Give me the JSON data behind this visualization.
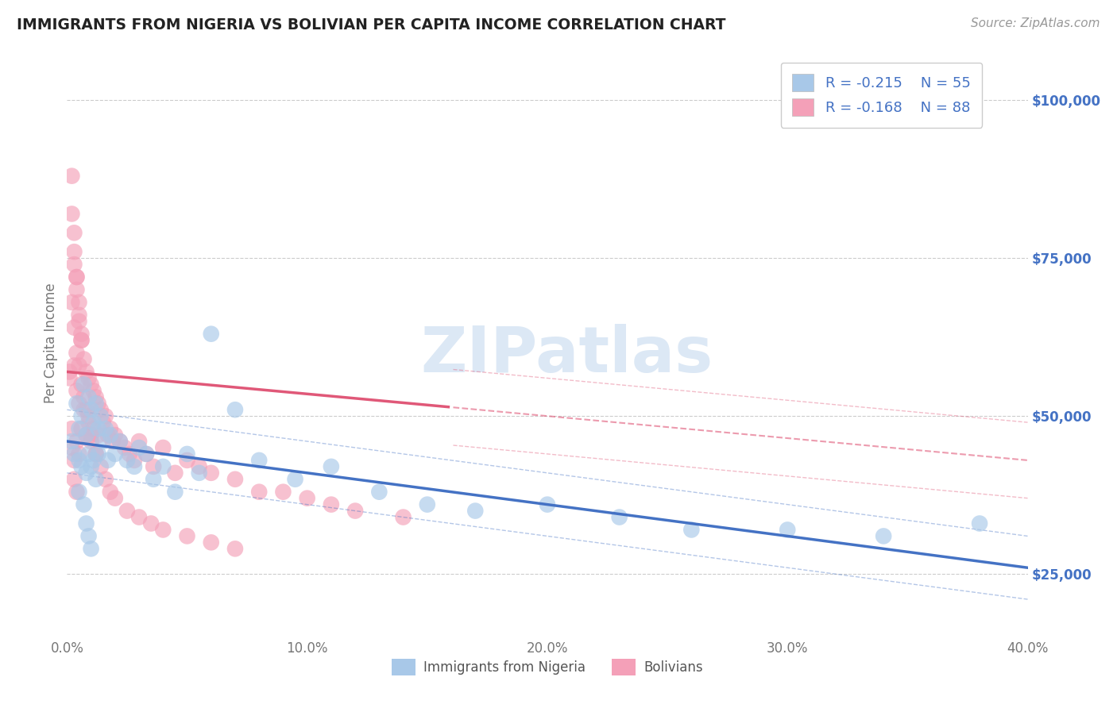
{
  "title": "IMMIGRANTS FROM NIGERIA VS BOLIVIAN PER CAPITA INCOME CORRELATION CHART",
  "source": "Source: ZipAtlas.com",
  "xlabel_nigeria": "Immigrants from Nigeria",
  "xlabel_bolivians": "Bolivians",
  "ylabel": "Per Capita Income",
  "legend_R1": "R = -0.215",
  "legend_N1": "N = 55",
  "legend_R2": "R = -0.168",
  "legend_N2": "N = 88",
  "xlim": [
    0.0,
    0.4
  ],
  "ylim": [
    15000,
    108000
  ],
  "yticks": [
    25000,
    50000,
    75000,
    100000
  ],
  "ytick_labels": [
    "$25,000",
    "$50,000",
    "$75,000",
    "$100,000"
  ],
  "xticks": [
    0.0,
    0.1,
    0.2,
    0.3,
    0.4
  ],
  "xtick_labels": [
    "0.0%",
    "10.0%",
    "20.0%",
    "30.0%",
    "40.0%"
  ],
  "color_nigeria": "#a8c8e8",
  "color_bolivians": "#f4a0b8",
  "color_line_nigeria": "#4472c4",
  "color_line_bolivians": "#e05878",
  "color_text_blue": "#4472c4",
  "watermark_text": "ZIPatlas",
  "watermark_color": "#dce8f5",
  "nigeria_x": [
    0.002,
    0.003,
    0.004,
    0.005,
    0.005,
    0.006,
    0.006,
    0.007,
    0.008,
    0.008,
    0.009,
    0.009,
    0.01,
    0.01,
    0.011,
    0.011,
    0.012,
    0.012,
    0.013,
    0.013,
    0.014,
    0.015,
    0.016,
    0.017,
    0.018,
    0.02,
    0.022,
    0.025,
    0.028,
    0.03,
    0.033,
    0.036,
    0.04,
    0.045,
    0.05,
    0.055,
    0.06,
    0.07,
    0.08,
    0.095,
    0.11,
    0.13,
    0.15,
    0.17,
    0.2,
    0.23,
    0.26,
    0.3,
    0.34,
    0.38,
    0.005,
    0.007,
    0.008,
    0.009,
    0.01
  ],
  "nigeria_y": [
    46000,
    44000,
    52000,
    48000,
    43000,
    50000,
    42000,
    55000,
    47000,
    41000,
    53000,
    44000,
    51000,
    42000,
    49000,
    43000,
    52000,
    40000,
    48000,
    44000,
    50000,
    46000,
    48000,
    43000,
    47000,
    44000,
    46000,
    43000,
    42000,
    45000,
    44000,
    40000,
    42000,
    38000,
    44000,
    41000,
    63000,
    51000,
    43000,
    40000,
    42000,
    38000,
    36000,
    35000,
    36000,
    34000,
    32000,
    32000,
    31000,
    33000,
    38000,
    36000,
    33000,
    31000,
    29000
  ],
  "bolivians_x": [
    0.001,
    0.002,
    0.003,
    0.003,
    0.004,
    0.004,
    0.005,
    0.005,
    0.006,
    0.006,
    0.007,
    0.007,
    0.008,
    0.008,
    0.009,
    0.009,
    0.01,
    0.01,
    0.011,
    0.011,
    0.012,
    0.012,
    0.013,
    0.013,
    0.014,
    0.015,
    0.016,
    0.017,
    0.018,
    0.019,
    0.02,
    0.022,
    0.024,
    0.026,
    0.028,
    0.03,
    0.033,
    0.036,
    0.04,
    0.045,
    0.05,
    0.055,
    0.06,
    0.07,
    0.08,
    0.09,
    0.1,
    0.11,
    0.12,
    0.14,
    0.003,
    0.004,
    0.005,
    0.006,
    0.007,
    0.008,
    0.009,
    0.01,
    0.012,
    0.014,
    0.016,
    0.018,
    0.02,
    0.025,
    0.03,
    0.035,
    0.04,
    0.05,
    0.06,
    0.07,
    0.002,
    0.003,
    0.004,
    0.005,
    0.006,
    0.002,
    0.003,
    0.004,
    0.005,
    0.006,
    0.001,
    0.002,
    0.003,
    0.004,
    0.003,
    0.002,
    0.004,
    0.005
  ],
  "bolivians_y": [
    56000,
    68000,
    79000,
    58000,
    72000,
    54000,
    65000,
    52000,
    62000,
    48000,
    59000,
    51000,
    57000,
    47000,
    56000,
    50000,
    55000,
    46000,
    54000,
    48000,
    53000,
    44000,
    52000,
    47000,
    51000,
    49000,
    50000,
    47000,
    48000,
    46000,
    47000,
    46000,
    45000,
    44000,
    43000,
    46000,
    44000,
    42000,
    45000,
    41000,
    43000,
    42000,
    41000,
    40000,
    38000,
    38000,
    37000,
    36000,
    35000,
    34000,
    64000,
    60000,
    58000,
    55000,
    53000,
    51000,
    49000,
    47000,
    44000,
    42000,
    40000,
    38000,
    37000,
    35000,
    34000,
    33000,
    32000,
    31000,
    30000,
    29000,
    88000,
    74000,
    70000,
    66000,
    62000,
    82000,
    76000,
    72000,
    68000,
    63000,
    57000,
    45000,
    40000,
    38000,
    43000,
    48000,
    46000,
    44000
  ]
}
